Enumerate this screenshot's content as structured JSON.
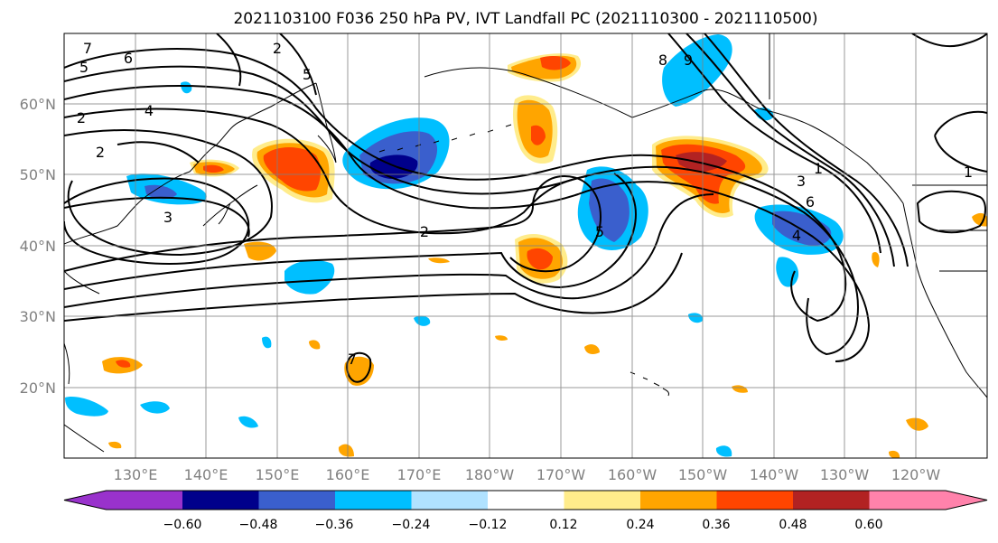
{
  "title": "2021103100 F036 250 hPa PV, IVT Landfall PC (2021110300 - 2021110500)",
  "map": {
    "lat_labels": [
      "60°N",
      "50°N",
      "40°N",
      "30°N",
      "20°N"
    ],
    "lon_labels": [
      "130°E",
      "140°E",
      "150°E",
      "160°E",
      "170°E",
      "180°W",
      "170°W",
      "160°W",
      "150°W",
      "140°W",
      "130°W",
      "120°W"
    ],
    "gridlines": true,
    "contour_color": "#000000",
    "contour_labels": [
      "7",
      "6",
      "5",
      "4",
      "2",
      "2",
      "2",
      "2",
      "5",
      "8",
      "9",
      "1",
      "3",
      "6",
      "4",
      "7",
      "1",
      "5",
      "3"
    ]
  },
  "colorbar": {
    "tick_labels": [
      "−0.60",
      "−0.48",
      "−0.36",
      "−0.24",
      "−0.12",
      "0.12",
      "0.24",
      "0.36",
      "0.48",
      "0.60"
    ],
    "colors": [
      "#9932cc",
      "#00008b",
      "#3a5fcd",
      "#00bfff",
      "#b0e2ff",
      "#ffffff",
      "#ffec8b",
      "#ffa500",
      "#ff4500",
      "#b22222",
      "#ff82ab"
    ]
  }
}
